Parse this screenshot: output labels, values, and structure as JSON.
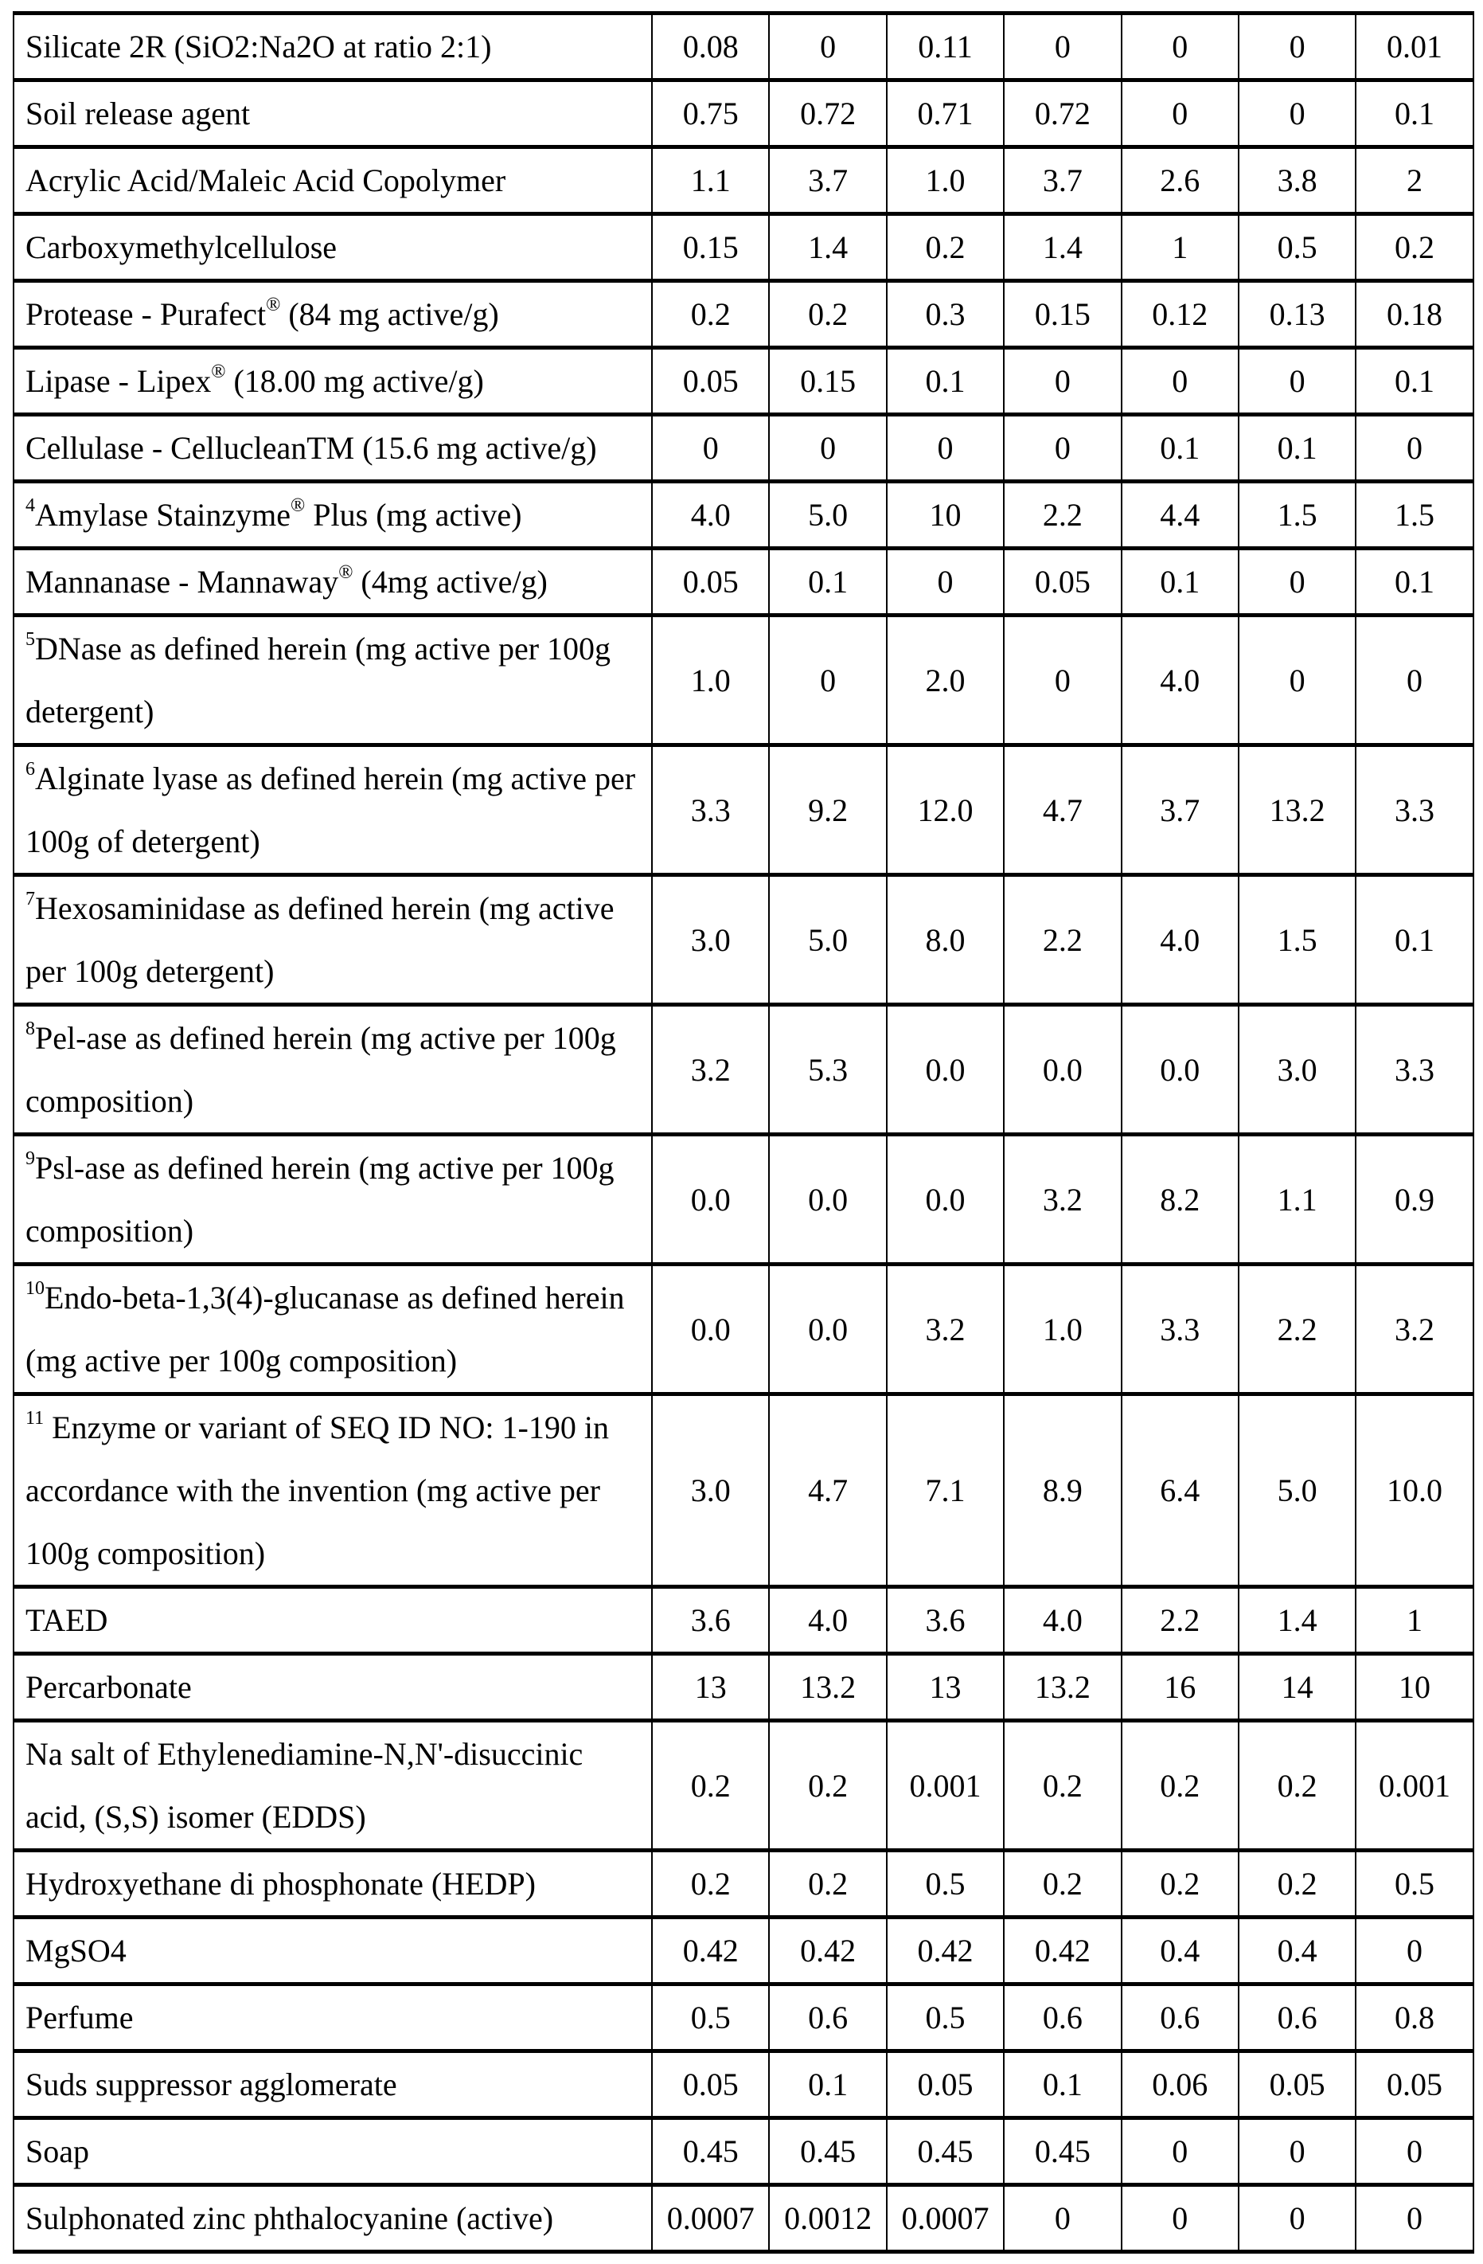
{
  "table": {
    "rows": [
      {
        "label": [
          {
            "t": "Silicate 2R (SiO2:Na2O at ratio 2:1)"
          }
        ],
        "values": [
          "0.08",
          "0",
          "0.11",
          "0",
          "0",
          "0",
          "0.01"
        ]
      },
      {
        "label": [
          {
            "t": "Soil release agent"
          }
        ],
        "values": [
          "0.75",
          "0.72",
          "0.71",
          "0.72",
          "0",
          "0",
          "0.1"
        ]
      },
      {
        "label": [
          {
            "t": "Acrylic Acid/Maleic Acid Copolymer"
          }
        ],
        "values": [
          "1.1",
          "3.7",
          "1.0",
          "3.7",
          "2.6",
          "3.8",
          "2"
        ]
      },
      {
        "label": [
          {
            "t": "Carboxymethylcellulose"
          }
        ],
        "values": [
          "0.15",
          "1.4",
          "0.2",
          "1.4",
          "1",
          "0.5",
          "0.2"
        ]
      },
      {
        "label": [
          {
            "t": "Protease - Purafect"
          },
          {
            "t": "®",
            "sup": true
          },
          {
            "t": " (84 mg active/g)"
          }
        ],
        "values": [
          "0.2",
          "0.2",
          "0.3",
          "0.15",
          "0.12",
          "0.13",
          "0.18"
        ]
      },
      {
        "label": [
          {
            "t": "Lipase - Lipex"
          },
          {
            "t": "®",
            "sup": true
          },
          {
            "t": " (18.00 mg active/g)"
          }
        ],
        "values": [
          "0.05",
          "0.15",
          "0.1",
          "0",
          "0",
          "0",
          "0.1"
        ]
      },
      {
        "label": [
          {
            "t": "Cellulase - CellucleanTM (15.6 mg active/g)"
          }
        ],
        "values": [
          "0",
          "0",
          "0",
          "0",
          "0.1",
          "0.1",
          "0"
        ]
      },
      {
        "label": [
          {
            "t": "4",
            "sup": true
          },
          {
            "t": "Amylase Stainzyme"
          },
          {
            "t": "®",
            "sup": true
          },
          {
            "t": " Plus (mg active)"
          }
        ],
        "values": [
          "4.0",
          "5.0",
          "10",
          "2.2",
          "4.4",
          "1.5",
          "1.5"
        ]
      },
      {
        "label": [
          {
            "t": "Mannanase - Mannaway"
          },
          {
            "t": "®",
            "sup": true
          },
          {
            "t": " (4mg active/g)"
          }
        ],
        "values": [
          "0.05",
          "0.1",
          "0",
          "0.05",
          "0.1",
          "0",
          "0.1"
        ]
      },
      {
        "label": [
          {
            "t": "5",
            "sup": true
          },
          {
            "t": "DNase as defined herein (mg active per 100g detergent)"
          }
        ],
        "values": [
          "1.0",
          "0",
          "2.0",
          "0",
          "4.0",
          "0",
          "0"
        ]
      },
      {
        "label": [
          {
            "t": "6",
            "sup": true
          },
          {
            "t": "Alginate lyase as defined herein (mg active per 100g of detergent)"
          }
        ],
        "values": [
          "3.3",
          "9.2",
          "12.0",
          "4.7",
          "3.7",
          "13.2",
          "3.3"
        ]
      },
      {
        "label": [
          {
            "t": "7",
            "sup": true
          },
          {
            "t": "Hexosaminidase as defined herein (mg active per 100g detergent)"
          }
        ],
        "values": [
          "3.0",
          "5.0",
          "8.0",
          "2.2",
          "4.0",
          "1.5",
          "0.1"
        ]
      },
      {
        "label": [
          {
            "t": "8",
            "sup": true
          },
          {
            "t": "Pel-ase as defined herein (mg active per 100g composition)"
          }
        ],
        "values": [
          "3.2",
          "5.3",
          "0.0",
          "0.0",
          "0.0",
          "3.0",
          "3.3"
        ]
      },
      {
        "label": [
          {
            "t": "9",
            "sup": true
          },
          {
            "t": "Psl-ase as defined herein (mg active per 100g composition)"
          }
        ],
        "values": [
          "0.0",
          "0.0",
          "0.0",
          "3.2",
          "8.2",
          "1.1",
          "0.9"
        ]
      },
      {
        "label": [
          {
            "t": "10",
            "sup": true
          },
          {
            "t": "Endo-beta-1,3(4)-glucanase as defined herein (mg active per 100g composition)"
          }
        ],
        "values": [
          "0.0",
          "0.0",
          "3.2",
          "1.0",
          "3.3",
          "2.2",
          "3.2"
        ]
      },
      {
        "label": [
          {
            "t": "11",
            "sup": true
          },
          {
            "t": " Enzyme or variant of SEQ ID NO: 1-190 in accordance with the invention (mg active per 100g composition)"
          }
        ],
        "values": [
          "3.0",
          "4.7",
          "7.1",
          "8.9",
          "6.4",
          "5.0",
          "10.0"
        ]
      },
      {
        "label": [
          {
            "t": "TAED"
          }
        ],
        "values": [
          "3.6",
          "4.0",
          "3.6",
          "4.0",
          "2.2",
          "1.4",
          "1"
        ]
      },
      {
        "label": [
          {
            "t": "Percarbonate"
          }
        ],
        "values": [
          "13",
          "13.2",
          "13",
          "13.2",
          "16",
          "14",
          "10"
        ]
      },
      {
        "label": [
          {
            "t": "Na salt of Ethylenediamine-N,N'-disuccinic acid, (S,S) isomer (EDDS)"
          }
        ],
        "values": [
          "0.2",
          "0.2",
          "0.001",
          "0.2",
          "0.2",
          "0.2",
          "0.001"
        ]
      },
      {
        "label": [
          {
            "t": "Hydroxyethane di phosphonate (HEDP)"
          }
        ],
        "values": [
          "0.2",
          "0.2",
          "0.5",
          "0.2",
          "0.2",
          "0.2",
          "0.5"
        ]
      },
      {
        "label": [
          {
            "t": "MgSO4"
          }
        ],
        "values": [
          "0.42",
          "0.42",
          "0.42",
          "0.42",
          "0.4",
          "0.4",
          "0"
        ]
      },
      {
        "label": [
          {
            "t": "Perfume"
          }
        ],
        "values": [
          "0.5",
          "0.6",
          "0.5",
          "0.6",
          "0.6",
          "0.6",
          "0.8"
        ]
      },
      {
        "label": [
          {
            "t": "Suds suppressor agglomerate"
          }
        ],
        "values": [
          "0.05",
          "0.1",
          "0.05",
          "0.1",
          "0.06",
          "0.05",
          "0.05"
        ]
      },
      {
        "label": [
          {
            "t": "Soap"
          }
        ],
        "values": [
          "0.45",
          "0.45",
          "0.45",
          "0.45",
          "0",
          "0",
          "0"
        ]
      },
      {
        "label": [
          {
            "t": "Sulphonated zinc phthalocyanine (active)"
          }
        ],
        "values": [
          "0.0007",
          "0.0012",
          "0.0007",
          "0",
          "0",
          "0",
          "0"
        ]
      }
    ]
  }
}
